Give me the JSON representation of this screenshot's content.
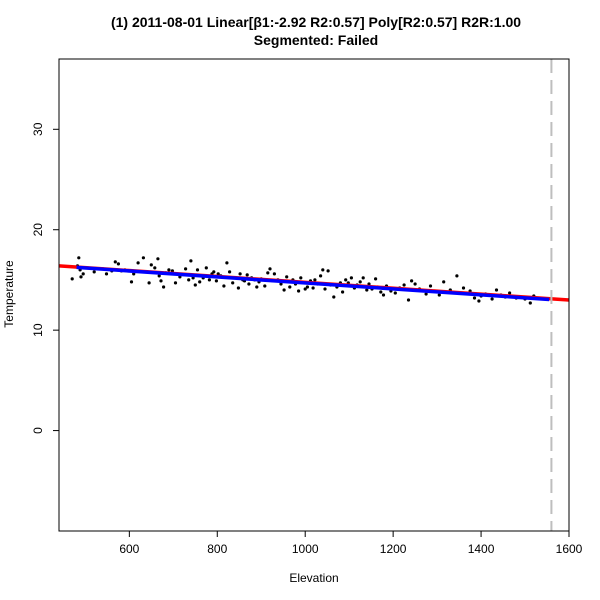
{
  "chart_data": {
    "type": "scatter",
    "title_line1": "(1) 2011-08-01 Linear[β1:-2.92 R2:0.57] Poly[R2:0.57] R2R:1.00",
    "title_line2": "Segmented: Failed",
    "xlabel": "Elevation",
    "ylabel": "Temperature",
    "xlim": [
      440,
      1600
    ],
    "ylim": [
      -10,
      37
    ],
    "xticks": [
      600,
      800,
      1000,
      1200,
      1400,
      1600
    ],
    "yticks": [
      0,
      10,
      20,
      30
    ],
    "vline_x": 1560,
    "colors": {
      "linear": "#ff0000",
      "poly": "#0000ff",
      "points": "#000000",
      "vline": "#bebebe"
    },
    "linear_fit": {
      "x": [
        440,
        1600
      ],
      "y": [
        16.4,
        13.0
      ]
    },
    "poly_fit": {
      "x": [
        480,
        1555
      ],
      "y": [
        16.25,
        13.05
      ]
    },
    "points": [
      [
        470,
        15.1
      ],
      [
        482,
        16.4
      ],
      [
        485,
        17.2
      ],
      [
        488,
        16.0
      ],
      [
        490,
        15.3
      ],
      [
        495,
        15.6
      ],
      [
        500,
        16.2
      ],
      [
        520,
        15.8
      ],
      [
        540,
        16.1
      ],
      [
        548,
        15.6
      ],
      [
        560,
        15.9
      ],
      [
        568,
        16.8
      ],
      [
        575,
        16.6
      ],
      [
        582,
        15.9
      ],
      [
        590,
        16.0
      ],
      [
        605,
        14.8
      ],
      [
        610,
        15.6
      ],
      [
        620,
        16.7
      ],
      [
        632,
        17.2
      ],
      [
        640,
        15.8
      ],
      [
        645,
        14.7
      ],
      [
        650,
        16.5
      ],
      [
        658,
        16.2
      ],
      [
        665,
        17.1
      ],
      [
        668,
        15.4
      ],
      [
        672,
        14.9
      ],
      [
        678,
        14.3
      ],
      [
        683,
        15.7
      ],
      [
        690,
        16.0
      ],
      [
        698,
        15.9
      ],
      [
        705,
        14.7
      ],
      [
        715,
        15.3
      ],
      [
        728,
        16.1
      ],
      [
        735,
        15.0
      ],
      [
        740,
        16.9
      ],
      [
        745,
        15.2
      ],
      [
        750,
        14.5
      ],
      [
        755,
        16.0
      ],
      [
        760,
        14.8
      ],
      [
        768,
        15.2
      ],
      [
        775,
        16.2
      ],
      [
        782,
        15.0
      ],
      [
        788,
        15.6
      ],
      [
        792,
        15.8
      ],
      [
        798,
        14.9
      ],
      [
        802,
        15.6
      ],
      [
        808,
        15.4
      ],
      [
        815,
        14.4
      ],
      [
        822,
        16.7
      ],
      [
        828,
        15.8
      ],
      [
        835,
        14.7
      ],
      [
        842,
        15.2
      ],
      [
        848,
        14.2
      ],
      [
        852,
        15.6
      ],
      [
        858,
        15.0
      ],
      [
        862,
        14.9
      ],
      [
        868,
        15.5
      ],
      [
        872,
        14.6
      ],
      [
        878,
        15.2
      ],
      [
        885,
        15.0
      ],
      [
        890,
        14.3
      ],
      [
        895,
        14.8
      ],
      [
        900,
        15.1
      ],
      [
        908,
        14.4
      ],
      [
        915,
        15.7
      ],
      [
        920,
        16.1
      ],
      [
        926,
        14.9
      ],
      [
        930,
        15.6
      ],
      [
        938,
        15.0
      ],
      [
        945,
        14.6
      ],
      [
        952,
        14.0
      ],
      [
        958,
        15.3
      ],
      [
        965,
        14.3
      ],
      [
        972,
        15.0
      ],
      [
        978,
        14.6
      ],
      [
        985,
        13.9
      ],
      [
        990,
        15.2
      ],
      [
        995,
        14.7
      ],
      [
        1000,
        14.1
      ],
      [
        1005,
        14.3
      ],
      [
        1012,
        14.9
      ],
      [
        1018,
        14.2
      ],
      [
        1022,
        15.0
      ],
      [
        1028,
        14.6
      ],
      [
        1035,
        15.4
      ],
      [
        1040,
        16.0
      ],
      [
        1045,
        14.1
      ],
      [
        1052,
        15.9
      ],
      [
        1058,
        14.5
      ],
      [
        1065,
        13.3
      ],
      [
        1072,
        14.3
      ],
      [
        1080,
        14.7
      ],
      [
        1085,
        13.8
      ],
      [
        1092,
        15.0
      ],
      [
        1098,
        14.7
      ],
      [
        1105,
        15.2
      ],
      [
        1112,
        14.2
      ],
      [
        1118,
        14.5
      ],
      [
        1125,
        14.8
      ],
      [
        1132,
        15.2
      ],
      [
        1140,
        14.0
      ],
      [
        1145,
        14.6
      ],
      [
        1152,
        14.1
      ],
      [
        1160,
        15.1
      ],
      [
        1165,
        14.3
      ],
      [
        1172,
        13.8
      ],
      [
        1178,
        13.5
      ],
      [
        1185,
        14.4
      ],
      [
        1195,
        13.9
      ],
      [
        1205,
        13.7
      ],
      [
        1215,
        14.2
      ],
      [
        1225,
        14.5
      ],
      [
        1235,
        13.0
      ],
      [
        1242,
        14.9
      ],
      [
        1250,
        14.6
      ],
      [
        1260,
        14.1
      ],
      [
        1275,
        13.6
      ],
      [
        1285,
        14.4
      ],
      [
        1295,
        13.9
      ],
      [
        1305,
        13.5
      ],
      [
        1315,
        14.8
      ],
      [
        1330,
        14.0
      ],
      [
        1345,
        15.4
      ],
      [
        1360,
        14.2
      ],
      [
        1375,
        13.9
      ],
      [
        1385,
        13.2
      ],
      [
        1390,
        13.6
      ],
      [
        1395,
        12.9
      ],
      [
        1400,
        13.4
      ],
      [
        1410,
        13.6
      ],
      [
        1425,
        13.1
      ],
      [
        1435,
        14.0
      ],
      [
        1445,
        13.5
      ],
      [
        1455,
        13.3
      ],
      [
        1465,
        13.7
      ],
      [
        1480,
        13.2
      ],
      [
        1500,
        13.1
      ],
      [
        1512,
        12.7
      ],
      [
        1520,
        13.4
      ]
    ]
  }
}
